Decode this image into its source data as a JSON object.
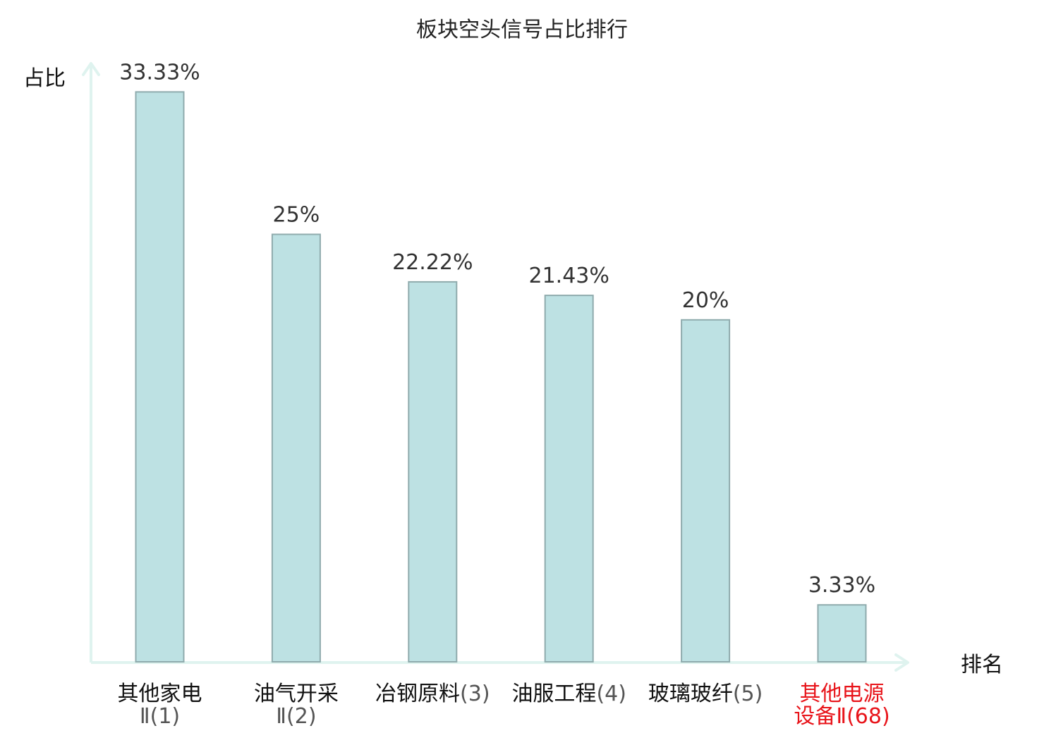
{
  "chart_data": {
    "type": "bar",
    "title": "板块空头信号占比排行",
    "ylabel": "占比",
    "xlabel": "排名",
    "ylim": [
      0,
      35
    ],
    "grid": false,
    "legend": "none",
    "categories": [
      {
        "name": "其他家电",
        "rank": "Ⅱ(1)",
        "value": 33.33,
        "label": "33.33%",
        "highlight": false,
        "two_line": true
      },
      {
        "name": "油气开采",
        "rank": "Ⅱ(2)",
        "value": 25,
        "label": "25%",
        "highlight": false,
        "two_line": true
      },
      {
        "name": "冶钢原料",
        "rank": "(3)",
        "value": 22.22,
        "label": "22.22%",
        "highlight": false,
        "two_line": false
      },
      {
        "name": "油服工程",
        "rank": "(4)",
        "value": 21.43,
        "label": "21.43%",
        "highlight": false,
        "two_line": false
      },
      {
        "name": "玻璃玻纤",
        "rank": "(5)",
        "value": 20,
        "label": "20%",
        "highlight": false,
        "two_line": false
      },
      {
        "name": "其他电源",
        "name2": "设备",
        "rank": "Ⅱ(68)",
        "value": 3.33,
        "label": "3.33%",
        "highlight": true,
        "two_line": true
      }
    ],
    "colors": {
      "bar_fill": "#bde1e3",
      "bar_stroke": "#8fabad",
      "axis": "#dff3ef",
      "highlight": "#e8141a"
    }
  }
}
